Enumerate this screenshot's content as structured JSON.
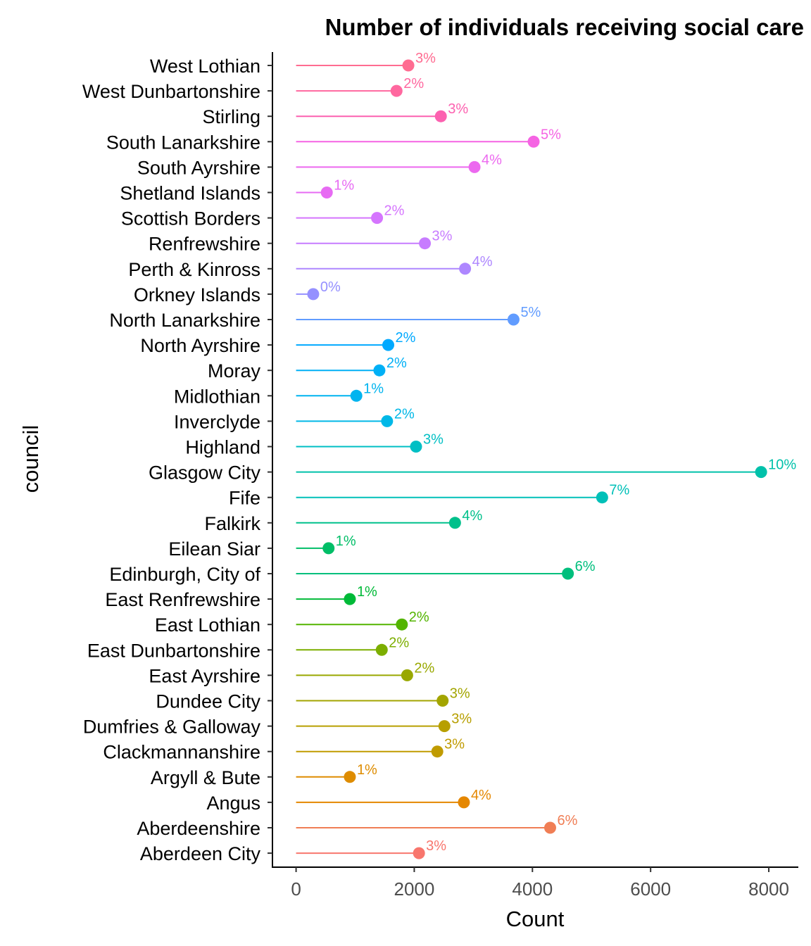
{
  "chart_data": {
    "type": "lollipop",
    "title": "Number of individuals receiving social care",
    "xlabel": "Count",
    "ylabel": "council",
    "xlim": [
      -400,
      8500
    ],
    "xticks": [
      "0",
      "2000",
      "4000",
      "6000",
      "8000"
    ],
    "xtick_values": [
      0,
      2000,
      4000,
      6000,
      8000
    ],
    "grid": false,
    "legend": "none",
    "categories": [
      "West Lothian",
      "West Dunbartonshire",
      "Stirling",
      "South Lanarkshire",
      "South Ayrshire",
      "Shetland Islands",
      "Scottish Borders",
      "Renfrewshire",
      "Perth & Kinross",
      "Orkney Islands",
      "North Lanarkshire",
      "North Ayrshire",
      "Moray",
      "Midlothian",
      "Inverclyde",
      "Highland",
      "Glasgow City",
      "Fife",
      "Falkirk",
      "Eilean Siar",
      "Edinburgh, City of",
      "East Renfrewshire",
      "East Lothian",
      "East Dunbartonshire",
      "East Ayrshire",
      "Dundee City",
      "Dumfries & Galloway",
      "Clackmannanshire",
      "Argyll & Bute",
      "Angus",
      "Aberdeenshire",
      "Aberdeen City"
    ],
    "values": [
      1900,
      1700,
      2450,
      4020,
      3020,
      520,
      1370,
      2180,
      2860,
      290,
      3680,
      1560,
      1410,
      1020,
      1540,
      2030,
      7870,
      5180,
      2690,
      550,
      4600,
      910,
      1790,
      1450,
      1880,
      2480,
      2510,
      2390,
      910,
      2840,
      4300,
      2080
    ],
    "labels": [
      "3%",
      "2%",
      "3%",
      "5%",
      "4%",
      "1%",
      "2%",
      "3%",
      "4%",
      "0%",
      "5%",
      "2%",
      "2%",
      "1%",
      "2%",
      "3%",
      "10%",
      "7%",
      "4%",
      "1%",
      "6%",
      "1%",
      "2%",
      "2%",
      "2%",
      "3%",
      "3%",
      "3%",
      "1%",
      "4%",
      "6%",
      "3%"
    ],
    "colors": [
      "#FF6C91",
      "#FF689F",
      "#FC61B0",
      "#F564E3",
      "#EC69EF",
      "#E76BF3",
      "#D575FE",
      "#C77CFF",
      "#AE87FF",
      "#9590FF",
      "#619CFF",
      "#00A9FF",
      "#00B0F6",
      "#00B4EF",
      "#00B8E7",
      "#00BFC4",
      "#00C1AA",
      "#00C0B8",
      "#00C08B",
      "#00BE67",
      "#00BF7D",
      "#00BA38",
      "#53B400",
      "#7CAE00",
      "#99A800",
      "#A3A500",
      "#B79F00",
      "#C09B00",
      "#DE8C00",
      "#E58700",
      "#F07E55",
      "#F8766D"
    ]
  }
}
